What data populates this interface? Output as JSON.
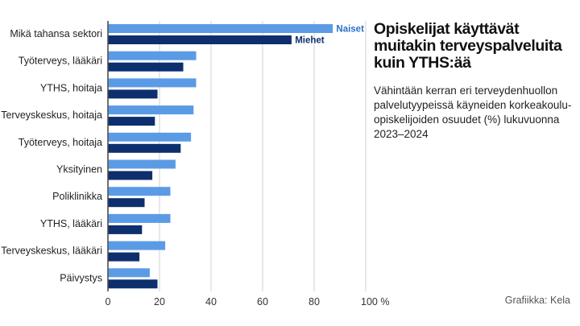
{
  "header": {
    "title": "Opiskelijat käyttävät muitakin terveyspalveluita kuin YTHS:ää",
    "subtitle": "Vähintään kerran eri terveydenhuollon palvelutyypeissä käyneiden korkeakoulu-opiskelijoiden osuudet (%) lukuvuonna 2023–2024"
  },
  "footer": {
    "source": "Grafiikka: Kela"
  },
  "colors": {
    "naiset": "#5b9be6",
    "miehet": "#0d2f6e",
    "grid": "#d0d0d0",
    "axis": "#222222"
  },
  "chart_data": {
    "type": "bar",
    "orientation": "horizontal",
    "title": "Opiskelijat käyttävät muitakin terveyspalveluita kuin YTHS:ää",
    "categories": [
      "Mikä tahansa sektori",
      "Työterveys, lääkäri",
      "YTHS, hoitaja",
      "Terveyskeskus, hoitaja",
      "Työterveys, hoitaja",
      "Yksityinen",
      "Poliklinikka",
      "YTHS, lääkäri",
      "Terveyskeskus, lääkäri",
      "Päivystys"
    ],
    "series": [
      {
        "name": "Naiset",
        "values": [
          87,
          34,
          34,
          33,
          32,
          26,
          24,
          24,
          22,
          16
        ]
      },
      {
        "name": "Miehet",
        "values": [
          71,
          29,
          19,
          18,
          28,
          17,
          14,
          13,
          12,
          19
        ]
      }
    ],
    "xlim": [
      0,
      100
    ],
    "xticks": [
      "0",
      "20",
      "40",
      "60",
      "80",
      "100 %"
    ],
    "grid": true,
    "legend": "inline labels at end of first category bars"
  }
}
